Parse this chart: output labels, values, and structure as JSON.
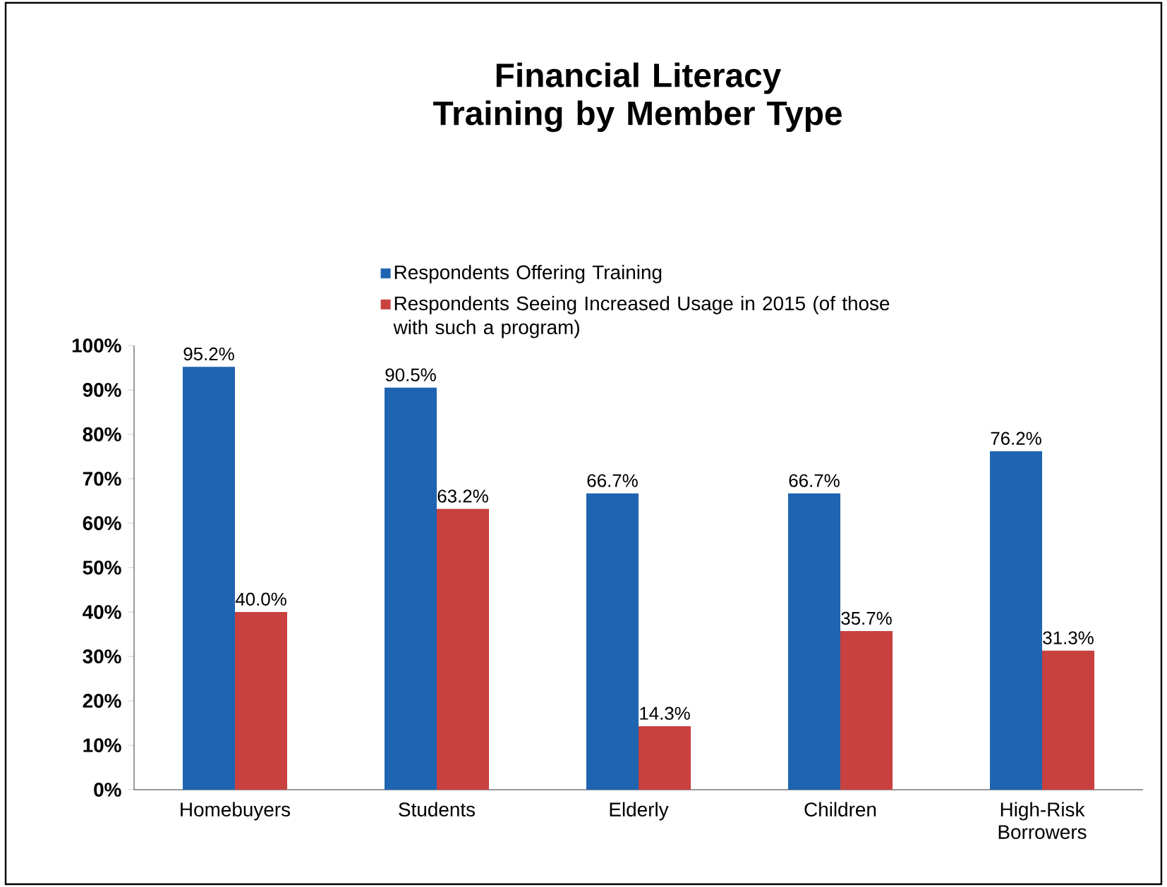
{
  "chart_data": {
    "type": "bar",
    "title": "Financial Literacy Training by Member Type",
    "categories": [
      "Homebuyers",
      "Students",
      "Elderly",
      "Children",
      "High-Risk Borrowers"
    ],
    "series": [
      {
        "name": "Respondents Offering Training",
        "color": "#1f64b0",
        "values": [
          95.2,
          90.5,
          66.7,
          66.7,
          76.2
        ],
        "value_labels": [
          "95.2%",
          "90.5%",
          "66.7%",
          "66.7%",
          "76.2%"
        ]
      },
      {
        "name": "Respondents Seeing Increased Usage in 2015 (of those with such a program)",
        "color": "#c8413f",
        "values": [
          40.0,
          63.2,
          14.3,
          35.7,
          31.3
        ],
        "value_labels": [
          "40.0%",
          "63.2%",
          "14.3%",
          "35.7%",
          "31.3%"
        ]
      }
    ],
    "ylim": [
      0,
      100
    ],
    "yticks": [
      {
        "value": 0,
        "label": "0%"
      },
      {
        "value": 10,
        "label": "10%"
      },
      {
        "value": 20,
        "label": "20%"
      },
      {
        "value": 30,
        "label": "30%"
      },
      {
        "value": 40,
        "label": "40%"
      },
      {
        "value": 50,
        "label": "50%"
      },
      {
        "value": 60,
        "label": "60%"
      },
      {
        "value": 70,
        "label": "70%"
      },
      {
        "value": 80,
        "label": "80%"
      },
      {
        "value": 90,
        "label": "90%"
      },
      {
        "value": 100,
        "label": "100%"
      }
    ],
    "grid": false,
    "legend": "top"
  }
}
